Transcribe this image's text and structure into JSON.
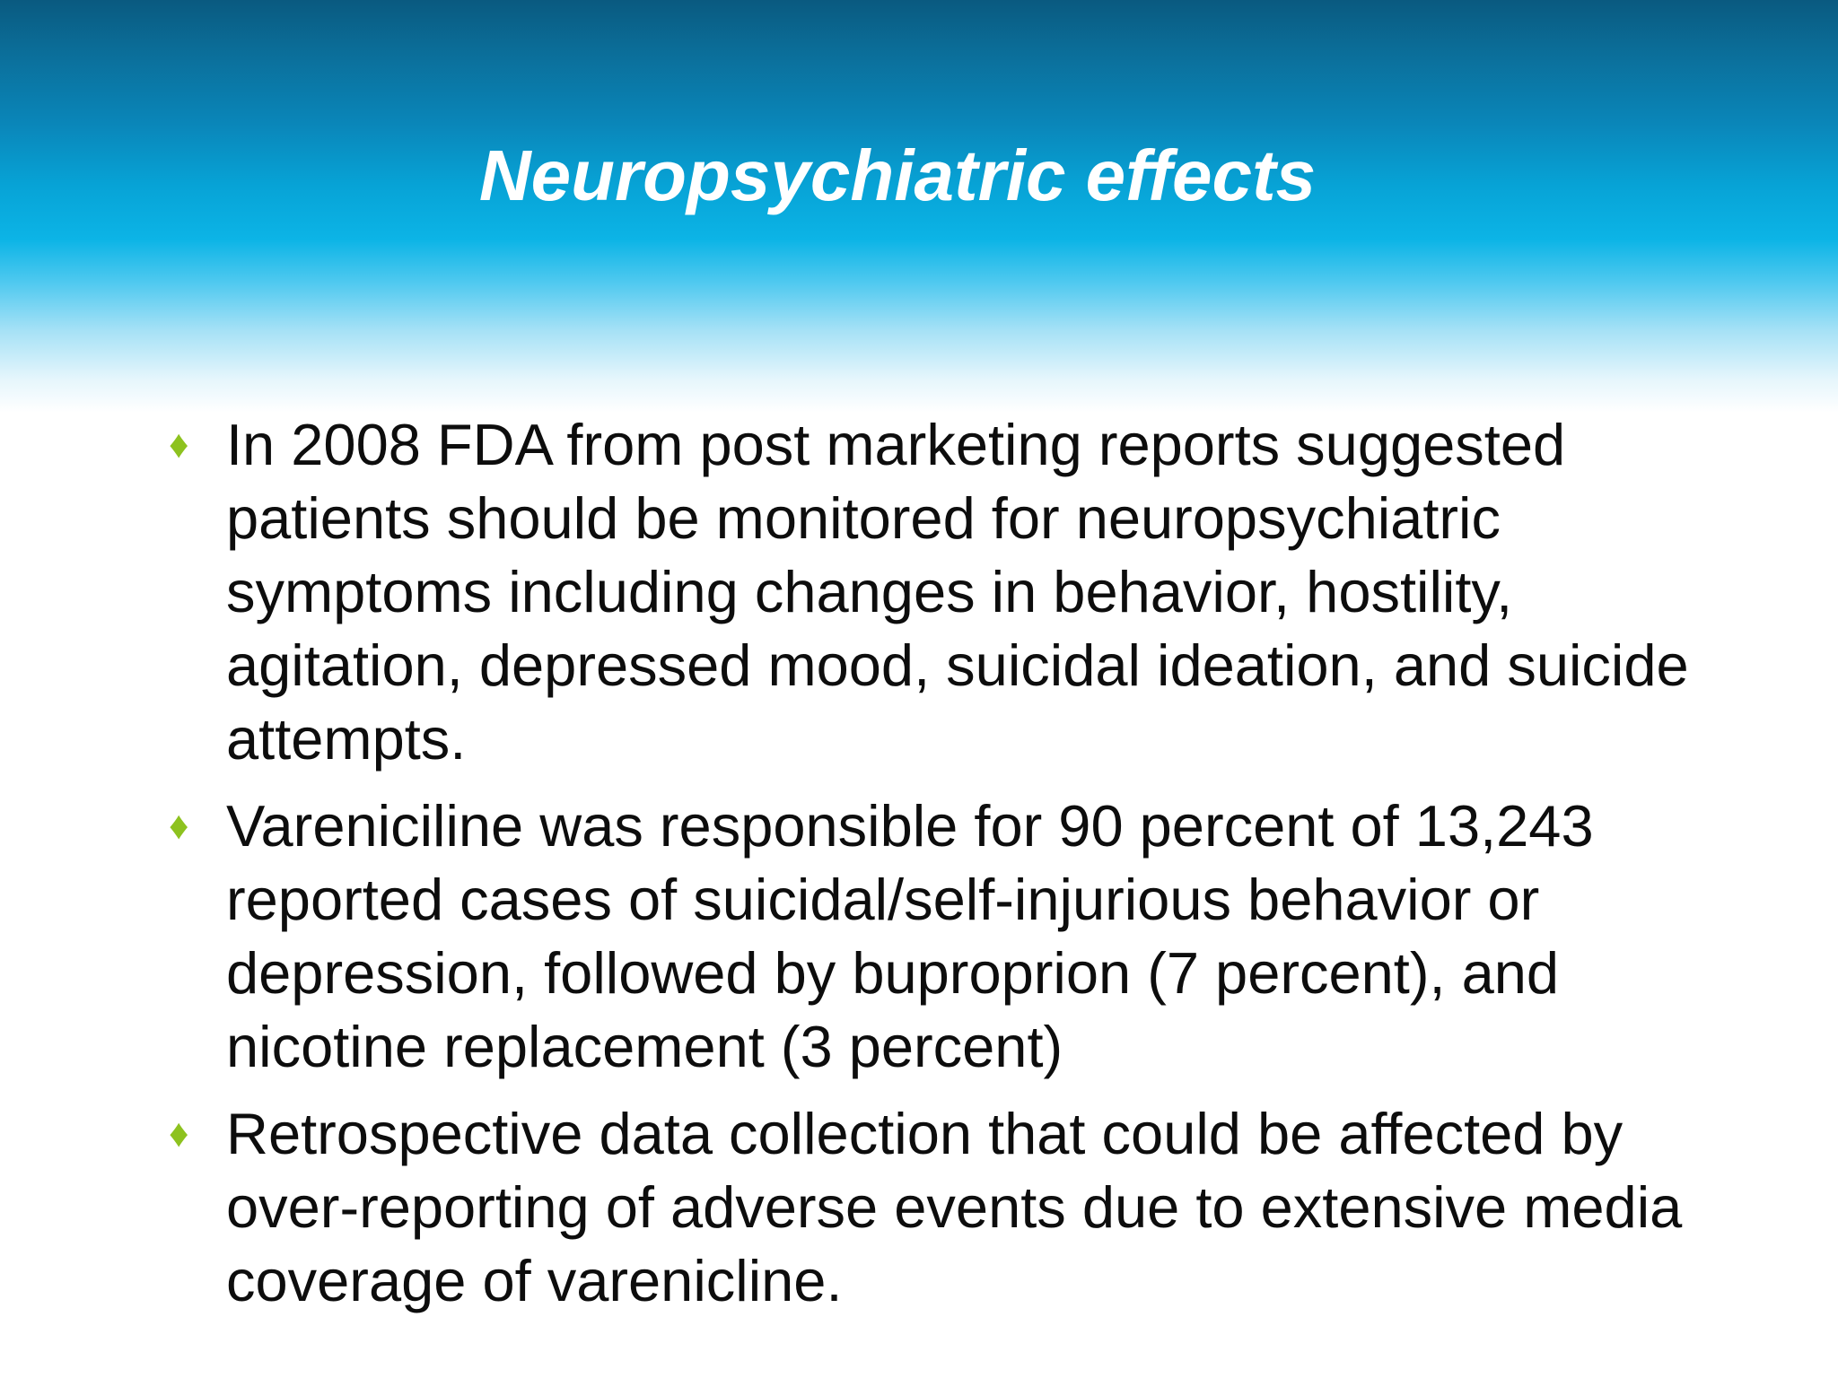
{
  "slide": {
    "title": "Neuropsychiatric effects",
    "bullet_color": "#8dc21f",
    "bullet_icon": "diamond-icon",
    "bullets": [
      "In 2008 FDA from post marketing reports suggested patients should be monitored for neuropsychiatric symptoms including changes in behavior, hostility, agitation, depressed mood, suicidal ideation, and suicide attempts.",
      "Vareniciline was responsible for 90 percent of 13,243 reported cases of suicidal/self-injurious behavior or depression, followed by buproprion (7 percent), and nicotine replacement (3 percent)",
      "Retrospective data collection that could be affected by over-reporting of adverse events due to extensive media coverage of varenicline."
    ]
  }
}
